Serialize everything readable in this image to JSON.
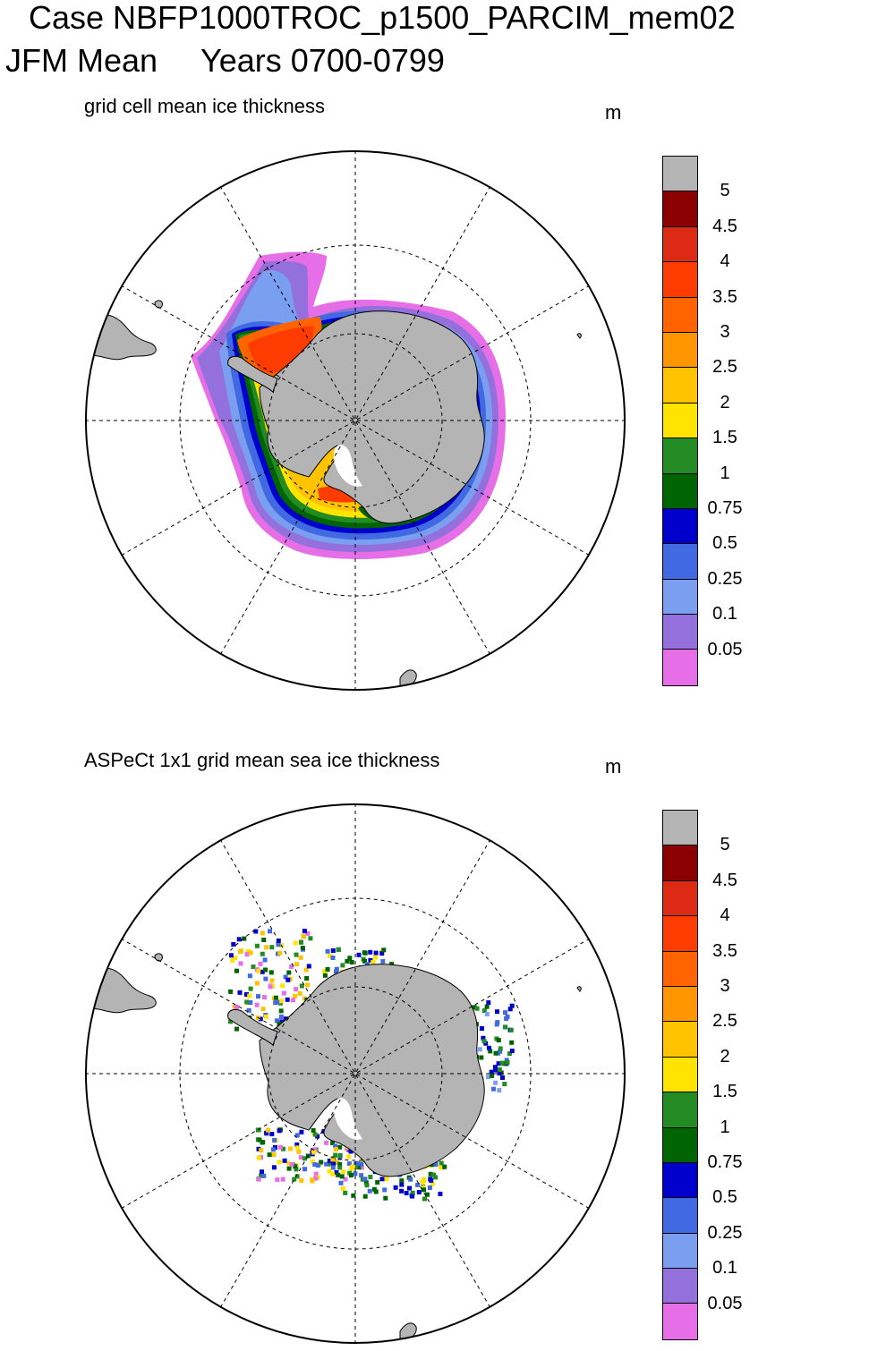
{
  "header": {
    "line1": "Case NBFP1000TROC_p1500_PARCIM_mem02",
    "season": "JFM Mean",
    "years": "Years 0700-0799"
  },
  "panels": [
    {
      "title": "grid cell mean ice thickness",
      "unit": "m"
    },
    {
      "title": "ASPeCt 1x1 grid mean sea ice thickness",
      "unit": "m"
    }
  ],
  "colorbar": {
    "labels": [
      "5",
      "4.5",
      "4",
      "3.5",
      "3",
      "2.5",
      "2",
      "1.5",
      "1",
      "0.75",
      "0.5",
      "0.25",
      "0.1",
      "0.05"
    ],
    "colors": [
      "#b4b4b4",
      "#8b0000",
      "#dc2a14",
      "#ff3c00",
      "#ff6400",
      "#ff9600",
      "#ffc300",
      "#ffe400",
      "#228b22",
      "#006400",
      "#0000cd",
      "#4169e1",
      "#7b9ff0",
      "#9370db",
      "#e66ee6"
    ]
  },
  "land_color": "#b4b4b4"
}
